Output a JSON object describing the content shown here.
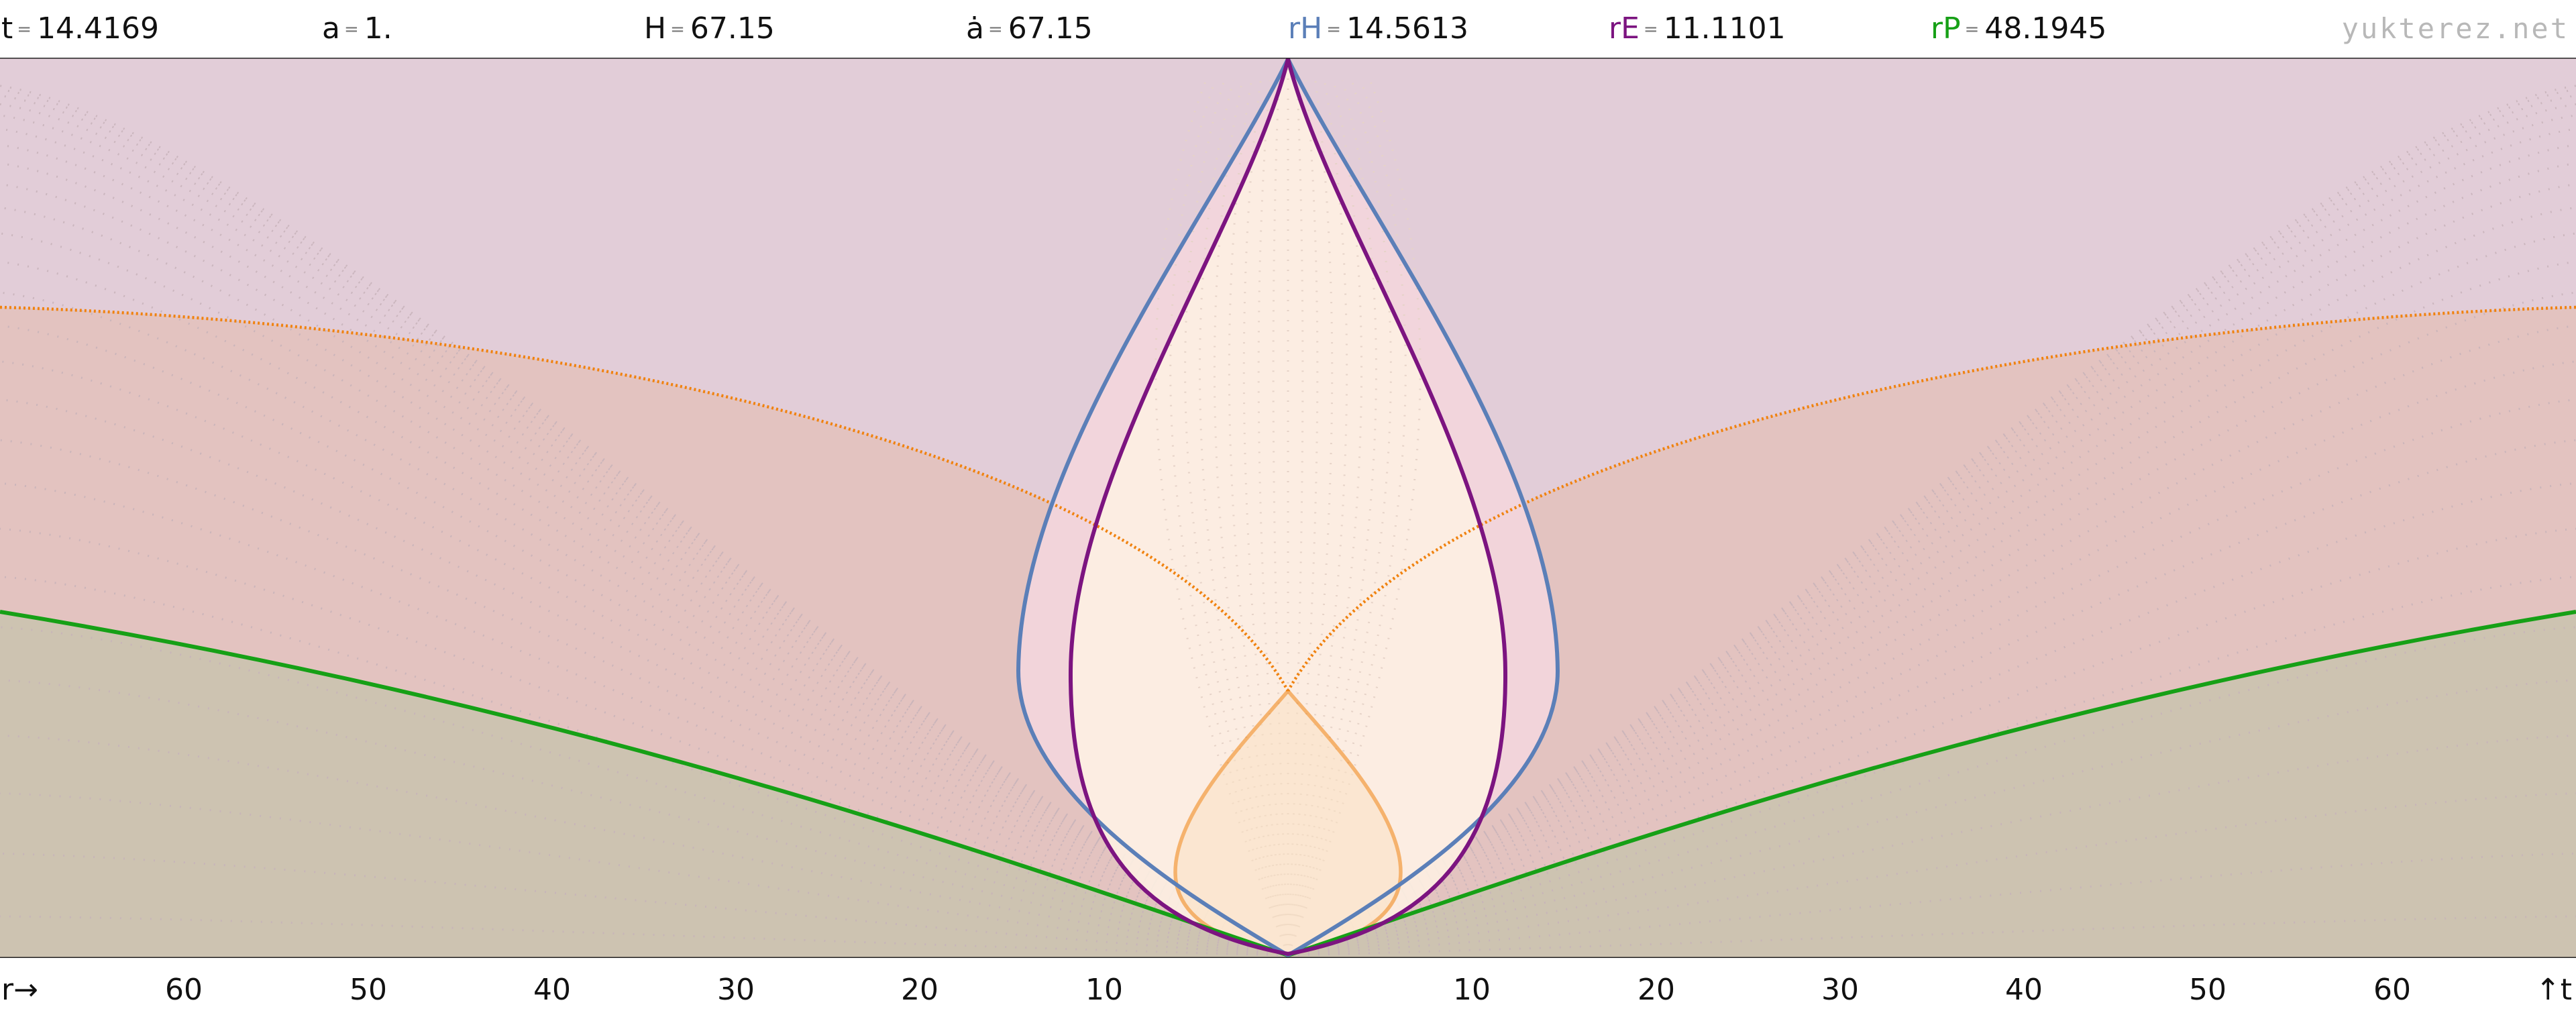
{
  "header": {
    "t": {
      "key": "t",
      "eq": "=",
      "value": "14.4169",
      "color": "#111111"
    },
    "a": {
      "key": "a",
      "eq": "=",
      "value": "1.",
      "color": "#111111"
    },
    "H": {
      "key": "H",
      "eq": "=",
      "value": "67.15",
      "color": "#111111"
    },
    "adot": {
      "key": "ȧ",
      "eq": "=",
      "value": "67.15",
      "color": "#111111"
    },
    "rH": {
      "key": "rH",
      "eq": "=",
      "value": "14.5613",
      "color": "#5b7fb8"
    },
    "rE": {
      "key": "rE",
      "eq": "=",
      "value": "11.1101",
      "color": "#7c1480"
    },
    "rP": {
      "key": "rP",
      "eq": "=",
      "value": "48.1945",
      "color": "#16a016"
    },
    "watermark": "yukterez.net"
  },
  "axis": {
    "left_label": "r→",
    "right_label": "↑t",
    "ticks": [
      "60",
      "50",
      "40",
      "30",
      "20",
      "10",
      "0",
      "10",
      "20",
      "30",
      "40",
      "50",
      "60"
    ]
  },
  "colors": {
    "hubble": "#5b7fb8",
    "event": "#7c1480",
    "particle": "#16a016",
    "lightcone": "#f0820f",
    "band_top": "#e2cdd8",
    "band_mid": "#e3c3c0",
    "band_low": "#cdc3b1",
    "bulb_outer": "#f3d6dc",
    "bulb_inner": "#fdefe2"
  }
}
